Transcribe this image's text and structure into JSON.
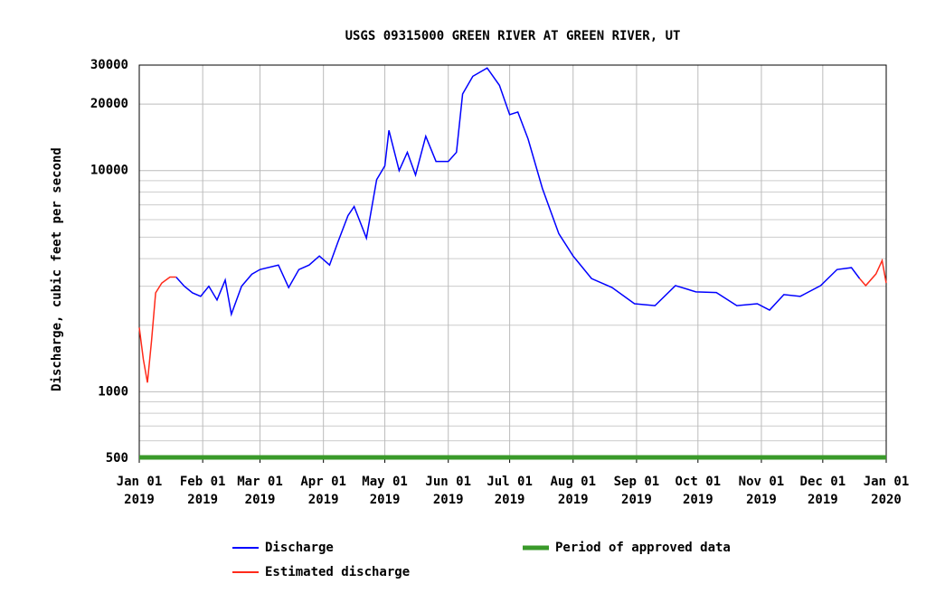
{
  "chart_data": {
    "type": "line",
    "title": "USGS 09315000 GREEN RIVER AT GREEN RIVER, UT",
    "y_label": "Discharge, cubic feet per second",
    "log_y": true,
    "grid": true,
    "xlim": [
      "2019-01-01",
      "2020-01-01"
    ],
    "ylim": [
      500,
      30000
    ],
    "yticks": [
      500,
      1000,
      10000,
      20000,
      30000
    ],
    "y_minor_ticks": [
      600,
      700,
      800,
      900,
      2000,
      3000,
      4000,
      5000,
      6000,
      7000,
      8000,
      9000
    ],
    "xticks": [
      {
        "value": "2019-01-01",
        "label": [
          "Jan 01",
          "2019"
        ]
      },
      {
        "value": "2019-02-01",
        "label": [
          "Feb 01",
          "2019"
        ]
      },
      {
        "value": "2019-03-01",
        "label": [
          "Mar 01",
          "2019"
        ]
      },
      {
        "value": "2019-04-01",
        "label": [
          "Apr 01",
          "2019"
        ]
      },
      {
        "value": "2019-05-01",
        "label": [
          "May 01",
          "2019"
        ]
      },
      {
        "value": "2019-06-01",
        "label": [
          "Jun 01",
          "2019"
        ]
      },
      {
        "value": "2019-07-01",
        "label": [
          "Jul 01",
          "2019"
        ]
      },
      {
        "value": "2019-08-01",
        "label": [
          "Aug 01",
          "2019"
        ]
      },
      {
        "value": "2019-09-01",
        "label": [
          "Sep 01",
          "2019"
        ]
      },
      {
        "value": "2019-10-01",
        "label": [
          "Oct 01",
          "2019"
        ]
      },
      {
        "value": "2019-11-01",
        "label": [
          "Nov 01",
          "2019"
        ]
      },
      {
        "value": "2019-12-01",
        "label": [
          "Dec 01",
          "2019"
        ]
      },
      {
        "value": "2020-01-01",
        "label": [
          "Jan 01",
          "2020"
        ]
      }
    ],
    "x": [
      "2019-01-01",
      "2019-01-03",
      "2019-01-05",
      "2019-01-07",
      "2019-01-09",
      "2019-01-12",
      "2019-01-16",
      "2019-01-19",
      "2019-01-23",
      "2019-01-27",
      "2019-01-31",
      "2019-02-04",
      "2019-02-08",
      "2019-02-12",
      "2019-02-15",
      "2019-02-20",
      "2019-02-25",
      "2019-03-01",
      "2019-03-10",
      "2019-03-15",
      "2019-03-20",
      "2019-03-25",
      "2019-03-30",
      "2019-04-04",
      "2019-04-08",
      "2019-04-13",
      "2019-04-16",
      "2019-04-22",
      "2019-04-27",
      "2019-05-01",
      "2019-05-03",
      "2019-05-08",
      "2019-05-12",
      "2019-05-16",
      "2019-05-21",
      "2019-05-26",
      "2019-06-01",
      "2019-06-05",
      "2019-06-08",
      "2019-06-13",
      "2019-06-20",
      "2019-06-26",
      "2019-07-01",
      "2019-07-05",
      "2019-07-10",
      "2019-07-17",
      "2019-07-25",
      "2019-08-01",
      "2019-08-10",
      "2019-08-20",
      "2019-08-31",
      "2019-09-10",
      "2019-09-20",
      "2019-09-30",
      "2019-10-10",
      "2019-10-20",
      "2019-10-30",
      "2019-11-05",
      "2019-11-12",
      "2019-11-20",
      "2019-11-30",
      "2019-12-08",
      "2019-12-15",
      "2019-12-19",
      "2019-12-22",
      "2019-12-27",
      "2019-12-30",
      "2020-01-01"
    ],
    "series": [
      {
        "name": "Discharge",
        "color": "#0000ff",
        "values": [
          null,
          null,
          null,
          null,
          null,
          null,
          null,
          3300,
          3000,
          2800,
          2700,
          3000,
          2600,
          3200,
          2240,
          3000,
          3400,
          3570,
          3740,
          2960,
          3570,
          3740,
          4110,
          3740,
          4730,
          6260,
          6880,
          4950,
          9100,
          10500,
          15200,
          10000,
          12100,
          9550,
          14300,
          11000,
          11000,
          12100,
          22200,
          26700,
          29100,
          24300,
          17900,
          18400,
          13900,
          8300,
          5190,
          4110,
          3250,
          2960,
          2500,
          2450,
          3020,
          2830,
          2810,
          2450,
          2500,
          2340,
          2750,
          2700,
          3020,
          3570,
          3640,
          3250,
          null,
          null,
          null,
          null
        ]
      },
      {
        "name": "Estimated discharge",
        "color": "#ff2a1a",
        "values": [
          1950,
          1400,
          1100,
          1700,
          2800,
          3100,
          3300,
          3300,
          null,
          null,
          null,
          null,
          null,
          null,
          null,
          null,
          null,
          null,
          null,
          null,
          null,
          null,
          null,
          null,
          null,
          null,
          null,
          null,
          null,
          null,
          null,
          null,
          null,
          null,
          null,
          null,
          null,
          null,
          null,
          null,
          null,
          null,
          null,
          null,
          null,
          null,
          null,
          null,
          null,
          null,
          null,
          null,
          null,
          null,
          null,
          null,
          null,
          null,
          null,
          null,
          null,
          null,
          null,
          3250,
          3020,
          3410,
          3920,
          3100
        ]
      }
    ],
    "approved_period": {
      "name": "Period of approved data",
      "color": "#3a9a2a",
      "start": "2019-01-01",
      "end": "2020-01-01"
    }
  }
}
